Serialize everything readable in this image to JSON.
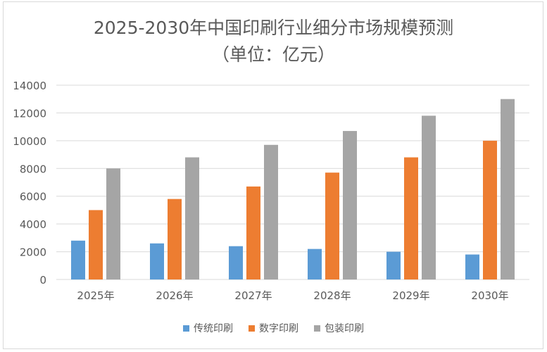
{
  "chart_data": {
    "type": "bar",
    "title": "2025-2030年中国印刷行业细分市场规模预测",
    "subtitle": "（单位：亿元）",
    "categories": [
      "2025年",
      "2026年",
      "2027年",
      "2028年",
      "2029年",
      "2030年"
    ],
    "series": [
      {
        "name": "传统印刷",
        "color": "#5b9bd5",
        "values": [
          2800,
          2600,
          2400,
          2200,
          2000,
          1800
        ]
      },
      {
        "name": "数字印刷",
        "color": "#ed7d31",
        "values": [
          5000,
          5800,
          6700,
          7700,
          8800,
          10000
        ]
      },
      {
        "name": "包装印刷",
        "color": "#a5a5a5",
        "values": [
          8000,
          8800,
          9700,
          10700,
          11800,
          13000
        ]
      }
    ],
    "yticks": [
      0,
      2000,
      4000,
      6000,
      8000,
      10000,
      12000,
      14000
    ],
    "ylim": [
      0,
      14000
    ],
    "xlabel": "",
    "ylabel": "",
    "grid": true,
    "legend_position": "bottom"
  }
}
